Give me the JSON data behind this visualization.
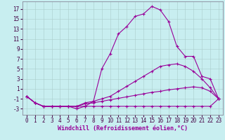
{
  "background_color": "#c8eef0",
  "grid_color": "#aacccc",
  "line_color": "#990099",
  "xlabel": "Windchill (Refroidissement éolien,°C)",
  "xlabel_fontsize": 6,
  "tick_fontsize": 5.5,
  "xlim": [
    -0.5,
    23.5
  ],
  "ylim": [
    -4.2,
    18.5
  ],
  "yticks": [
    -3,
    -1,
    1,
    3,
    5,
    7,
    9,
    11,
    13,
    15,
    17
  ],
  "xticks": [
    0,
    1,
    2,
    3,
    4,
    5,
    6,
    7,
    8,
    9,
    10,
    11,
    12,
    13,
    14,
    15,
    16,
    17,
    18,
    19,
    20,
    21,
    22,
    23
  ],
  "series": [
    {
      "x": [
        0,
        1,
        2,
        3,
        4,
        5,
        6,
        7,
        8,
        9,
        10,
        11,
        12,
        13,
        14,
        15,
        16,
        17,
        18,
        19,
        20,
        21,
        22,
        23
      ],
      "y": [
        -0.5,
        -1.8,
        -2.5,
        -2.5,
        -2.5,
        -2.5,
        -2.5,
        -2.5,
        -2.5,
        -2.5,
        -2.5,
        -2.5,
        -2.5,
        -2.5,
        -2.5,
        -2.5,
        -2.5,
        -2.5,
        -2.5,
        -2.5,
        -2.5,
        -2.5,
        -2.5,
        -1.0
      ]
    },
    {
      "x": [
        0,
        1,
        2,
        3,
        4,
        5,
        6,
        7,
        8,
        9,
        10,
        11,
        12,
        13,
        14,
        15,
        16,
        17,
        18,
        19,
        20,
        21,
        22,
        23
      ],
      "y": [
        -0.5,
        -1.8,
        -2.5,
        -2.5,
        -2.5,
        -2.5,
        -2.5,
        -2.0,
        -1.8,
        -1.5,
        -1.2,
        -0.9,
        -0.6,
        -0.3,
        0.0,
        0.3,
        0.5,
        0.8,
        1.0,
        1.2,
        1.4,
        1.2,
        0.5,
        -1.0
      ]
    },
    {
      "x": [
        0,
        1,
        2,
        3,
        4,
        5,
        6,
        7,
        8,
        9,
        10,
        11,
        12,
        13,
        14,
        15,
        16,
        17,
        18,
        19,
        20,
        21,
        22,
        23
      ],
      "y": [
        -0.5,
        -1.8,
        -2.5,
        -2.5,
        -2.5,
        -2.5,
        -2.5,
        -1.8,
        -1.5,
        -1.0,
        -0.5,
        0.5,
        1.5,
        2.5,
        3.5,
        4.5,
        5.5,
        5.8,
        6.0,
        5.5,
        4.5,
        3.0,
        1.2,
        -1.0
      ]
    },
    {
      "x": [
        0,
        1,
        2,
        3,
        4,
        5,
        6,
        7,
        8,
        9,
        10,
        11,
        12,
        13,
        14,
        15,
        16,
        17,
        18,
        19,
        20,
        21,
        22,
        23
      ],
      "y": [
        -0.5,
        -1.8,
        -2.5,
        -2.5,
        -2.5,
        -2.5,
        -3.0,
        -2.5,
        -1.5,
        5.0,
        8.0,
        12.0,
        13.5,
        15.5,
        16.0,
        17.5,
        16.8,
        14.5,
        9.5,
        7.5,
        7.5,
        3.5,
        3.0,
        -1.0
      ]
    }
  ]
}
